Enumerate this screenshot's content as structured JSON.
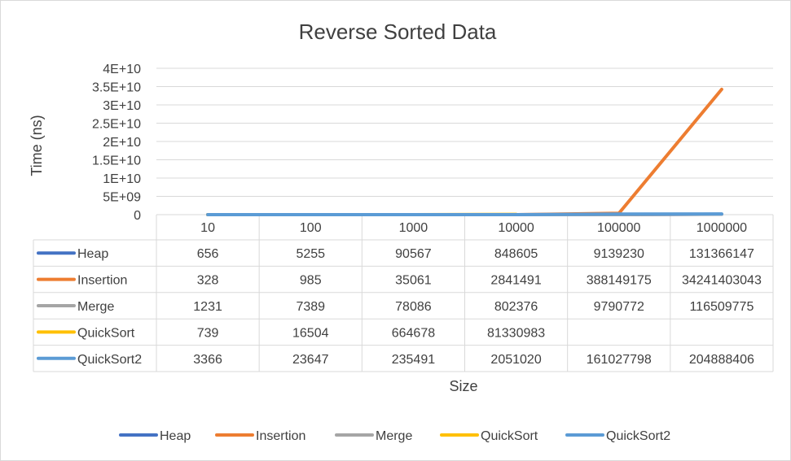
{
  "chart_data": {
    "type": "line",
    "title": "Reverse Sorted Data",
    "xlabel": "Size",
    "ylabel": "Time (ns)",
    "ylim": [
      0,
      40000000000
    ],
    "y_ticks": [
      "0",
      "5E+09",
      "1E+10",
      "1.5E+10",
      "2E+10",
      "2.5E+10",
      "3E+10",
      "3.5E+10",
      "4E+10"
    ],
    "y_tick_values": [
      0,
      5000000000,
      10000000000,
      15000000000,
      20000000000,
      25000000000,
      30000000000,
      35000000000,
      40000000000
    ],
    "grid": true,
    "legend_position": "bottom",
    "categories": [
      "10",
      "100",
      "1000",
      "10000",
      "100000",
      "1000000"
    ],
    "series": [
      {
        "name": "Heap",
        "color": "#4472c4",
        "values": [
          656,
          5255,
          90567,
          848605,
          9139230,
          131366147
        ],
        "labels": [
          "656",
          "5255",
          "90567",
          "848605",
          "9139230",
          "131366147"
        ]
      },
      {
        "name": "Insertion",
        "color": "#ed7d31",
        "values": [
          328,
          985,
          35061,
          2841491,
          388149175,
          34241403043
        ],
        "labels": [
          "328",
          "985",
          "35061",
          "2841491",
          "388149175",
          "34241403043"
        ]
      },
      {
        "name": "Merge",
        "color": "#a5a5a5",
        "values": [
          1231,
          7389,
          78086,
          802376,
          9790772,
          116509775
        ],
        "labels": [
          "1231",
          "7389",
          "78086",
          "802376",
          "9790772",
          "116509775"
        ]
      },
      {
        "name": "QuickSort",
        "color": "#ffc000",
        "values": [
          739,
          16504,
          664678,
          81330983,
          null,
          null
        ],
        "labels": [
          "739",
          "16504",
          "664678",
          "81330983",
          "",
          ""
        ]
      },
      {
        "name": "QuickSort2",
        "color": "#5b9bd5",
        "values": [
          3366,
          23647,
          235491,
          2051020,
          161027798,
          204888406
        ],
        "labels": [
          "3366",
          "23647",
          "235491",
          "2051020",
          "161027798",
          "204888406"
        ]
      }
    ]
  }
}
